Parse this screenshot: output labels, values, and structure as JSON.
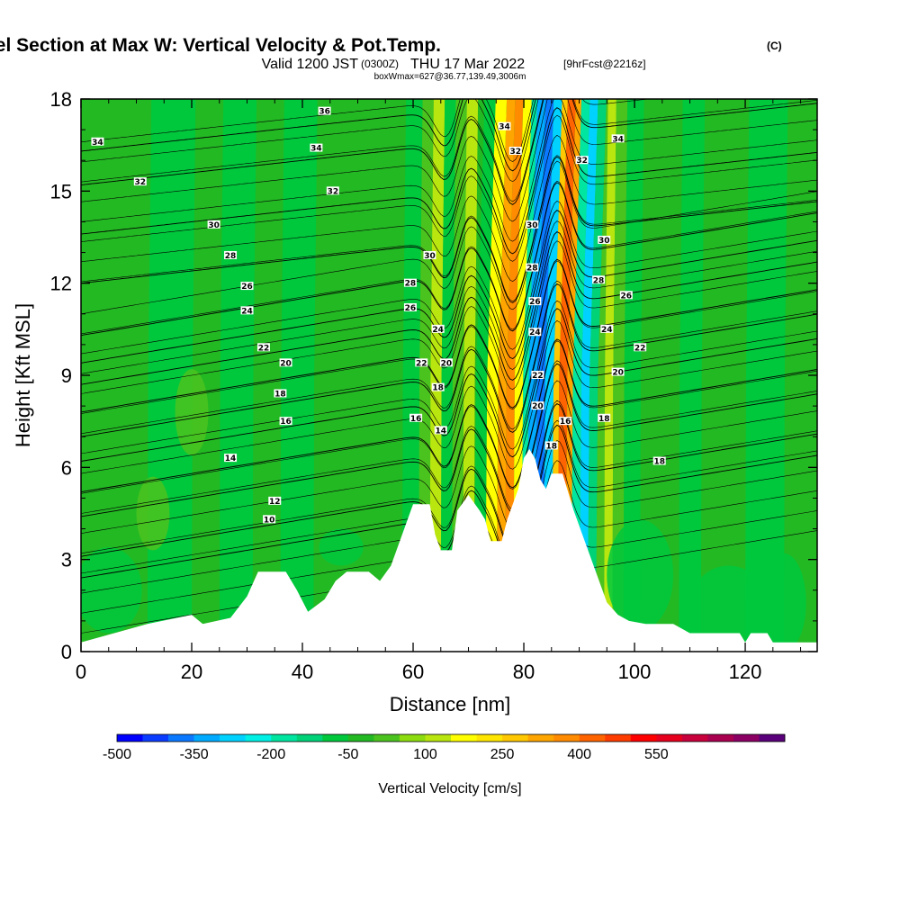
{
  "chart_data": {
    "type": "heatmap",
    "title": "Wind-Parallel Section at Max W: Vertical Velocity & Pot.Temp.",
    "title_mark": "(C)",
    "subtitle": {
      "valid_prefix": "Valid 1200 JST",
      "utc": "(0300Z)",
      "date": "THU 17 Mar 2022",
      "forecast": "[9hrFcst@2216z]"
    },
    "box_info": "boxWmax=627@36.77,139.49,3006m",
    "xlabel": "Distance [nm]",
    "ylabel": "Height [Kft MSL]",
    "xlim": [
      0,
      133
    ],
    "ylim": [
      0,
      18
    ],
    "x_ticks": [
      "0",
      "20",
      "40",
      "60",
      "80",
      "100",
      "120"
    ],
    "y_ticks": [
      "0",
      "3",
      "6",
      "9",
      "12",
      "15",
      "18"
    ],
    "colorbar": {
      "label": "Vertical Velocity [cm/s]",
      "min": -500,
      "step": 50,
      "colors": [
        "#0000ff",
        "#0a3cff",
        "#0a78ff",
        "#00aaff",
        "#00d2ff",
        "#00f0e6",
        "#00e6a0",
        "#00d278",
        "#00c83c",
        "#23b923",
        "#4bc31e",
        "#8cdc0f",
        "#b9e60f",
        "#ffff00",
        "#ffe600",
        "#ffc800",
        "#ffa500",
        "#ff8c00",
        "#ff6400",
        "#ff3c00",
        "#ff0000",
        "#e6001e",
        "#c8003c",
        "#aa0050",
        "#8c0064",
        "#5a007a"
      ],
      "tick_labels": [
        "-500",
        "-350",
        "-200",
        "-50",
        "100",
        "250",
        "400",
        "550"
      ]
    },
    "field_bands": [
      {
        "x_start": 0,
        "x_end": 12,
        "value": -20
      },
      {
        "x_start": 12,
        "x_end": 20,
        "value": -60
      },
      {
        "x_start": 20,
        "x_end": 25,
        "value": -20
      },
      {
        "x_start": 25,
        "x_end": 31,
        "value": -60
      },
      {
        "x_start": 31,
        "x_end": 36,
        "value": -20
      },
      {
        "x_start": 36,
        "x_end": 42,
        "value": -60
      },
      {
        "x_start": 42,
        "x_end": 48,
        "value": -20
      },
      {
        "x_start": 48,
        "x_end": 58,
        "value": -20
      },
      {
        "x_start": 58,
        "x_end": 61,
        "value": -60
      },
      {
        "x_start": 61,
        "x_end": 63,
        "value": 30
      },
      {
        "x_start": 63,
        "x_end": 65,
        "value": 100
      },
      {
        "x_start": 65,
        "x_end": 67,
        "value": -60
      },
      {
        "x_start": 67,
        "x_end": 69,
        "value": 30
      },
      {
        "x_start": 69,
        "x_end": 71,
        "value": 100
      },
      {
        "x_start": 71,
        "x_end": 73,
        "value": -60
      },
      {
        "x_start": 73,
        "x_end": 75,
        "value": 150
      },
      {
        "x_start": 75,
        "x_end": 76.5,
        "value": 300
      },
      {
        "x_start": 76.5,
        "x_end": 78,
        "value": 350
      },
      {
        "x_start": 78,
        "x_end": 79.5,
        "value": 150
      },
      {
        "x_start": 79.5,
        "x_end": 80.5,
        "value": -160
      },
      {
        "x_start": 80.5,
        "x_end": 82,
        "value": -310
      },
      {
        "x_start": 82,
        "x_end": 83.5,
        "value": -380
      },
      {
        "x_start": 83.5,
        "x_end": 85,
        "value": -300
      },
      {
        "x_start": 85,
        "x_end": 86,
        "value": 250
      },
      {
        "x_start": 86,
        "x_end": 87.5,
        "value": 430
      },
      {
        "x_start": 87.5,
        "x_end": 88.5,
        "value": 300
      },
      {
        "x_start": 88.5,
        "x_end": 90,
        "value": -160
      },
      {
        "x_start": 90,
        "x_end": 91.5,
        "value": -260
      },
      {
        "x_start": 91.5,
        "x_end": 93,
        "value": -110
      },
      {
        "x_start": 93,
        "x_end": 94.5,
        "value": 20
      },
      {
        "x_start": 94.5,
        "x_end": 96,
        "value": 100
      },
      {
        "x_start": 96,
        "x_end": 98,
        "value": 30
      },
      {
        "x_start": 98,
        "x_end": 101,
        "value": -60
      },
      {
        "x_start": 101,
        "x_end": 108,
        "value": -20
      },
      {
        "x_start": 108,
        "x_end": 112,
        "value": -60
      },
      {
        "x_start": 112,
        "x_end": 120,
        "value": -20
      },
      {
        "x_start": 120,
        "x_end": 127,
        "value": -60
      },
      {
        "x_start": 127,
        "x_end": 133,
        "value": -20
      }
    ],
    "terrain": [
      [
        0,
        0.3
      ],
      [
        6,
        0.6
      ],
      [
        12,
        0.9
      ],
      [
        20,
        1.2
      ],
      [
        22,
        0.9
      ],
      [
        27,
        1.1
      ],
      [
        30,
        1.8
      ],
      [
        32,
        2.6
      ],
      [
        37,
        2.6
      ],
      [
        39,
        2.0
      ],
      [
        41,
        1.3
      ],
      [
        44,
        1.7
      ],
      [
        46,
        2.3
      ],
      [
        48,
        2.6
      ],
      [
        52,
        2.6
      ],
      [
        54,
        2.3
      ],
      [
        56,
        2.8
      ],
      [
        58,
        3.8
      ],
      [
        60,
        4.8
      ],
      [
        63,
        4.8
      ],
      [
        64,
        3.8
      ],
      [
        65,
        3.3
      ],
      [
        67,
        3.3
      ],
      [
        68,
        4.6
      ],
      [
        70,
        5.1
      ],
      [
        72,
        4.6
      ],
      [
        73,
        4.3
      ],
      [
        74,
        3.6
      ],
      [
        76,
        3.6
      ],
      [
        77,
        4.3
      ],
      [
        79,
        5.3
      ],
      [
        80,
        6.3
      ],
      [
        81,
        6.6
      ],
      [
        82,
        6.3
      ],
      [
        83,
        5.6
      ],
      [
        84,
        5.3
      ],
      [
        85,
        5.8
      ],
      [
        87,
        5.8
      ],
      [
        89,
        4.6
      ],
      [
        91,
        3.6
      ],
      [
        93,
        2.6
      ],
      [
        95,
        1.6
      ],
      [
        97,
        1.2
      ],
      [
        99,
        1.0
      ],
      [
        102,
        0.9
      ],
      [
        107,
        0.9
      ],
      [
        110,
        0.6
      ],
      [
        119,
        0.6
      ],
      [
        120,
        0.3
      ],
      [
        121,
        0.6
      ],
      [
        124,
        0.6
      ],
      [
        125,
        0.3
      ],
      [
        133,
        0.3
      ]
    ],
    "contours": [
      {
        "theta": 10,
        "base": 3.6
      },
      {
        "theta": 12,
        "base": 4.3
      },
      {
        "theta": 14,
        "base": 5.6
      },
      {
        "theta": 16,
        "base": 6.4
      },
      {
        "theta": 18,
        "base": 7.4
      },
      {
        "theta": 20,
        "base": 8.2
      },
      {
        "theta": 22,
        "base": 9.0
      },
      {
        "theta": 24,
        "base": 9.9
      },
      {
        "theta": 26,
        "base": 10.6
      },
      {
        "theta": 28,
        "base": 11.5
      },
      {
        "theta": 30,
        "base": 12.8
      },
      {
        "theta": 32,
        "base": 14.4
      },
      {
        "theta": 34,
        "base": 16.0
      },
      {
        "theta": 36,
        "base": 17.1
      }
    ],
    "contour_labels": [
      {
        "text": "34",
        "x": 3,
        "y": 16.6
      },
      {
        "text": "32",
        "x": 10.7,
        "y": 15.3
      },
      {
        "text": "30",
        "x": 24,
        "y": 13.9
      },
      {
        "text": "28",
        "x": 27,
        "y": 12.9
      },
      {
        "text": "26",
        "x": 30,
        "y": 11.9
      },
      {
        "text": "24",
        "x": 30,
        "y": 11.1
      },
      {
        "text": "22",
        "x": 33,
        "y": 9.9
      },
      {
        "text": "20",
        "x": 37,
        "y": 9.4
      },
      {
        "text": "18",
        "x": 36,
        "y": 8.4
      },
      {
        "text": "16",
        "x": 37,
        "y": 7.5
      },
      {
        "text": "14",
        "x": 27,
        "y": 6.3
      },
      {
        "text": "12",
        "x": 35,
        "y": 4.9
      },
      {
        "text": "10",
        "x": 34,
        "y": 4.3
      },
      {
        "text": "36",
        "x": 44,
        "y": 17.6
      },
      {
        "text": "34",
        "x": 42.5,
        "y": 16.4
      },
      {
        "text": "32",
        "x": 45.5,
        "y": 15.0
      },
      {
        "text": "30",
        "x": 63,
        "y": 12.9
      },
      {
        "text": "28",
        "x": 59.5,
        "y": 12.0
      },
      {
        "text": "26",
        "x": 59.5,
        "y": 11.2
      },
      {
        "text": "24",
        "x": 64.5,
        "y": 10.5
      },
      {
        "text": "22",
        "x": 61.5,
        "y": 9.4
      },
      {
        "text": "20",
        "x": 66,
        "y": 9.4
      },
      {
        "text": "18",
        "x": 64.5,
        "y": 8.6
      },
      {
        "text": "16",
        "x": 60.5,
        "y": 7.6
      },
      {
        "text": "14",
        "x": 65,
        "y": 7.2
      },
      {
        "text": "34",
        "x": 76.5,
        "y": 17.1
      },
      {
        "text": "32",
        "x": 78.5,
        "y": 16.3
      },
      {
        "text": "30",
        "x": 81.5,
        "y": 13.9
      },
      {
        "text": "28",
        "x": 81.5,
        "y": 12.5
      },
      {
        "text": "26",
        "x": 82,
        "y": 11.4
      },
      {
        "text": "24",
        "x": 82,
        "y": 10.4
      },
      {
        "text": "22",
        "x": 82.5,
        "y": 9.0
      },
      {
        "text": "20",
        "x": 82.5,
        "y": 8.0
      },
      {
        "text": "18",
        "x": 85,
        "y": 6.7
      },
      {
        "text": "16",
        "x": 87.5,
        "y": 7.5
      },
      {
        "text": "34",
        "x": 97,
        "y": 16.7
      },
      {
        "text": "32",
        "x": 90.5,
        "y": 16.0
      },
      {
        "text": "30",
        "x": 94.5,
        "y": 13.4
      },
      {
        "text": "28",
        "x": 93.5,
        "y": 12.1
      },
      {
        "text": "26",
        "x": 98.5,
        "y": 11.6
      },
      {
        "text": "24",
        "x": 95,
        "y": 10.5
      },
      {
        "text": "22",
        "x": 101,
        "y": 9.9
      },
      {
        "text": "20",
        "x": 97,
        "y": 9.1
      },
      {
        "text": "18",
        "x": 94.5,
        "y": 7.6
      },
      {
        "text": "18",
        "x": 104.5,
        "y": 6.2
      }
    ]
  }
}
